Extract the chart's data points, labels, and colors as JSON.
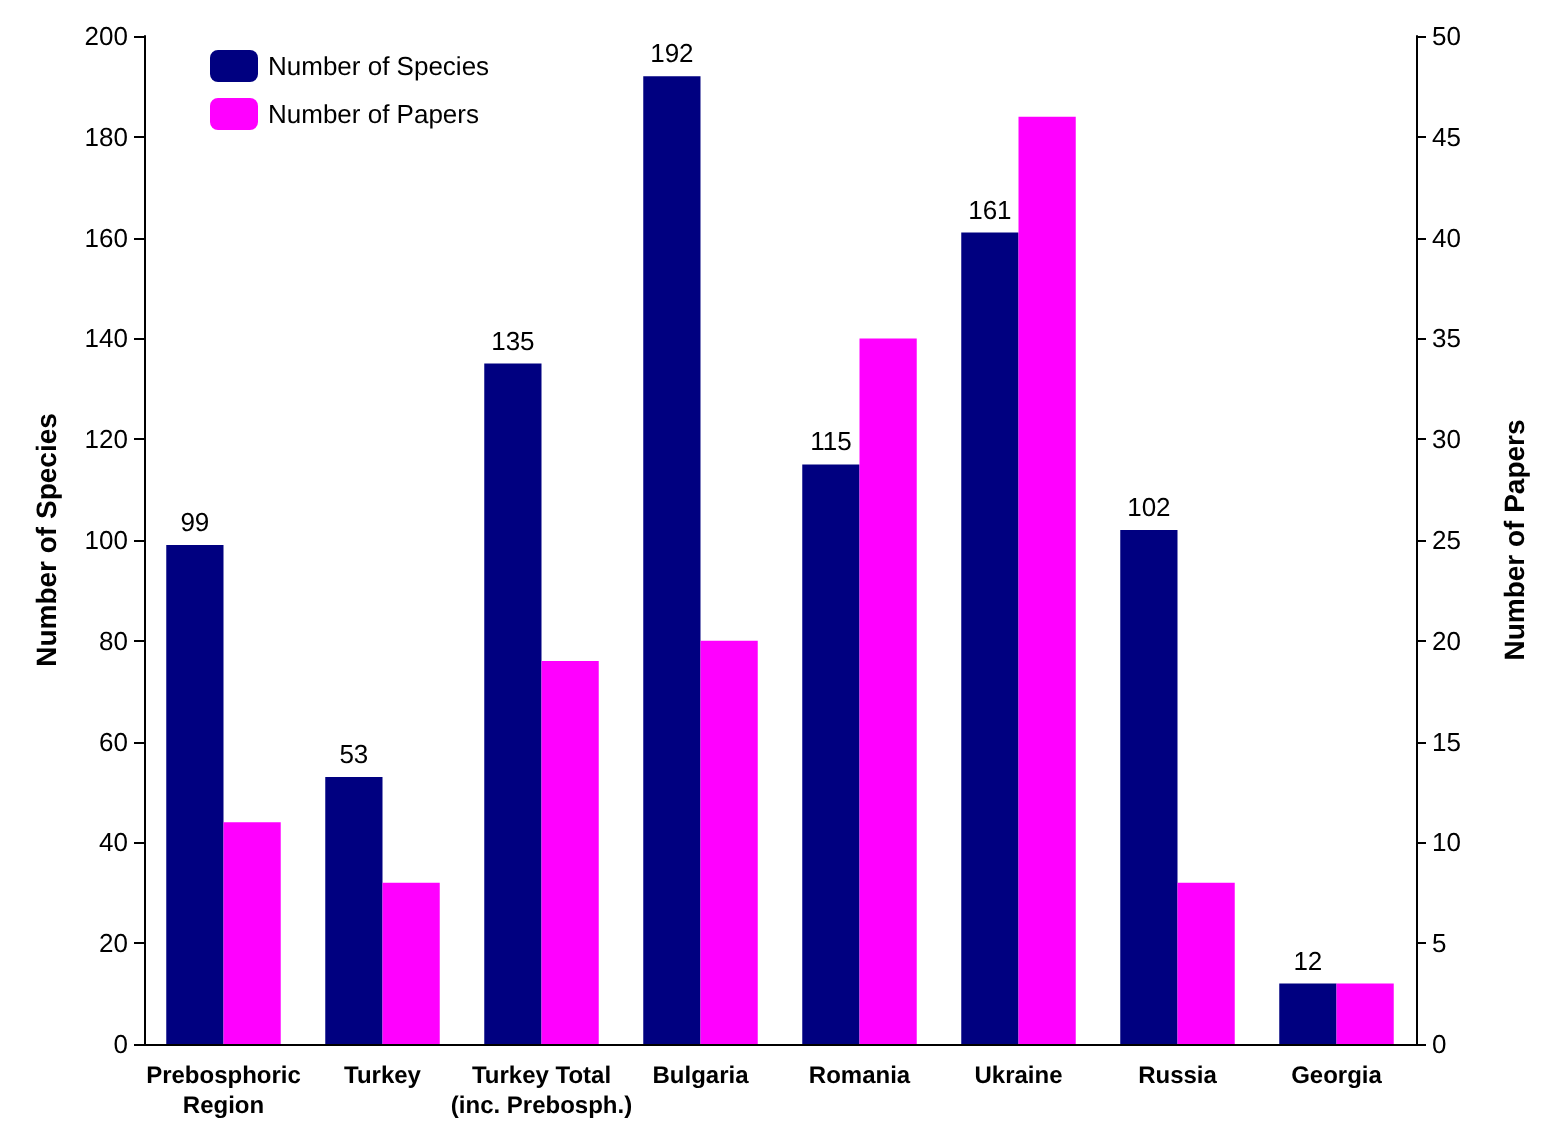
{
  "chart_data": {
    "type": "bar",
    "ylabel": "Number of Species",
    "y2label": "Number of Papers",
    "categories": [
      "Prebosphoric\nRegion",
      "Turkey",
      "Turkey Total\n(inc. Prebosph.)",
      "Bulgaria",
      "Romania",
      "Ukraine",
      "Russia",
      "Georgia"
    ],
    "series": [
      {
        "name": "Number of Species",
        "color": "#000080",
        "values": [
          99,
          53,
          135,
          192,
          115,
          161,
          102,
          12
        ],
        "value_labels": [
          "99",
          "53",
          "135",
          "192",
          "115",
          "161",
          "102",
          "12"
        ]
      },
      {
        "name": "Number of Papers",
        "color": "#ff00ff",
        "axis": "y2",
        "values": [
          11,
          8,
          19,
          20,
          35,
          46,
          8,
          3
        ]
      }
    ],
    "ylim": [
      0,
      200
    ],
    "yticks": [
      0,
      20,
      40,
      60,
      80,
      100,
      120,
      140,
      160,
      180,
      200
    ],
    "y2lim": [
      0,
      50
    ],
    "y2ticks": [
      0,
      5,
      10,
      15,
      20,
      25,
      30,
      35,
      40,
      45,
      50
    ],
    "grid": false,
    "legend": "top left"
  }
}
